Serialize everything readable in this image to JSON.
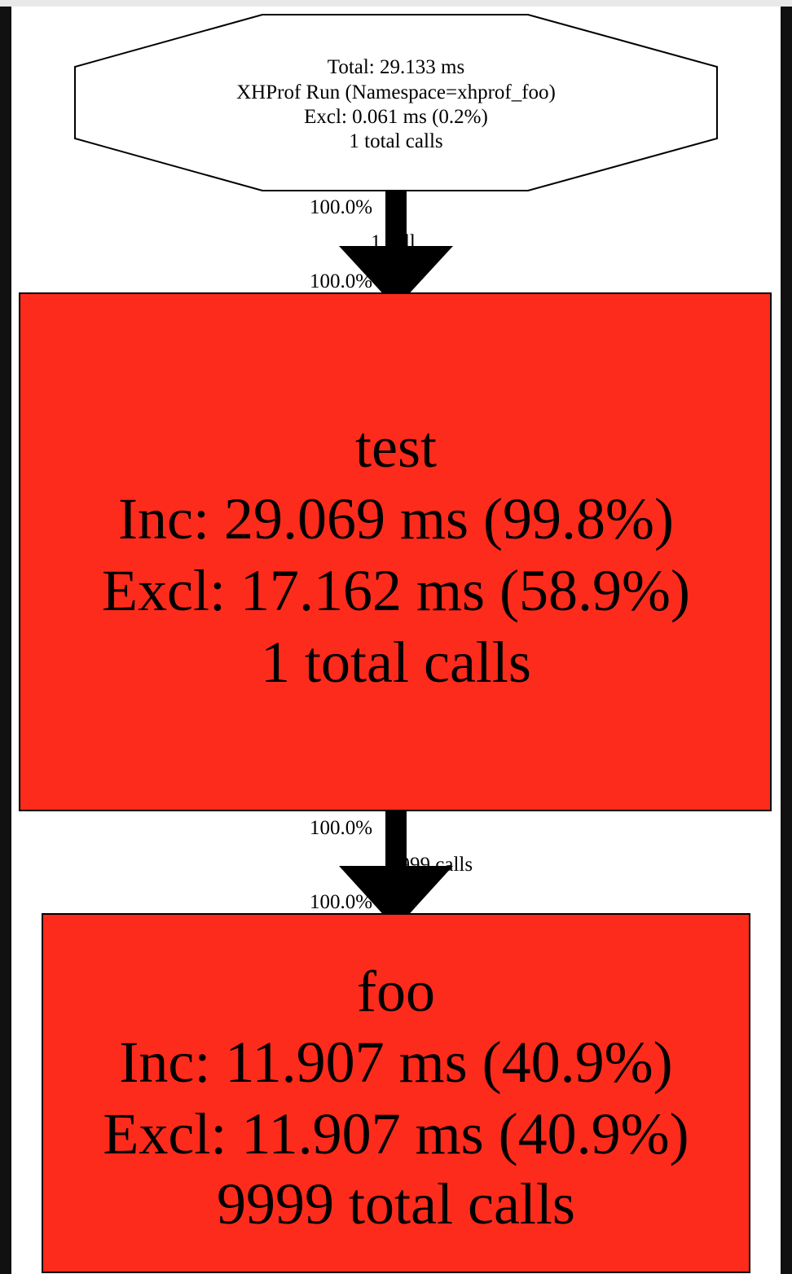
{
  "colors": {
    "page_background": "#ffffff",
    "node_hot_fill": "#fd2b1c",
    "root_fill": "#ffffff",
    "stroke": "#000000",
    "edge": "#000000"
  },
  "root_node": {
    "line1": "Total: 29.133 ms",
    "line2": "XHProf Run (Namespace=xhprof_foo)",
    "line3": "Excl: 0.061 ms (0.2%)",
    "line4": "1 total calls"
  },
  "edge1": {
    "tail_label": "100.0%",
    "label": "1 call",
    "head_label": "100.0%"
  },
  "test_node": {
    "name": "test",
    "inc": "Inc: 29.069 ms (99.8%)",
    "excl": "Excl: 17.162 ms (58.9%)",
    "calls": "1 total calls"
  },
  "edge2": {
    "tail_label": "100.0%",
    "label": "9999 calls",
    "head_label": "100.0%"
  },
  "foo_node": {
    "name": "foo",
    "inc": "Inc: 11.907 ms (40.9%)",
    "excl": "Excl: 11.907 ms (40.9%)",
    "calls": "9999 total calls"
  }
}
